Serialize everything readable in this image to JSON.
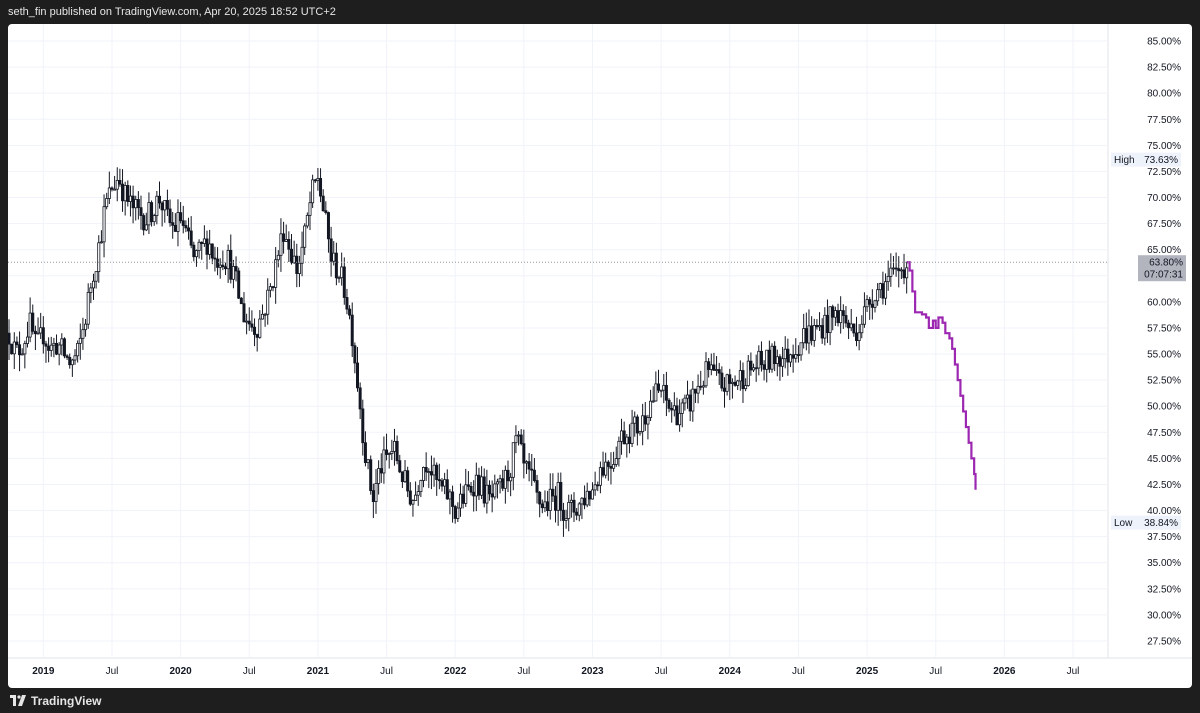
{
  "header": {
    "text": "seth_fin published on TradingView.com, Apr 20, 2025 18:52 UTC+2"
  },
  "footer": {
    "brand": "TradingView"
  },
  "colors": {
    "candles": "#131722",
    "projection": "#9c27b0",
    "grid": "#f0f3fa",
    "high_low_bg": "#eef2fa",
    "last_price_bg": "#b2b5be"
  },
  "chart_data": {
    "type": "line",
    "title": "",
    "y_axis": {
      "range": [
        26,
        87
      ],
      "unit": "%",
      "ticks": [
        "85.00%",
        "82.50%",
        "80.00%",
        "77.50%",
        "75.00%",
        "72.50%",
        "70.00%",
        "67.50%",
        "65.00%",
        "62.50%",
        "60.00%",
        "57.50%",
        "55.00%",
        "52.50%",
        "50.00%",
        "47.50%",
        "45.00%",
        "42.50%",
        "40.00%",
        "37.50%",
        "35.00%",
        "32.50%",
        "30.00%",
        "27.50%"
      ],
      "tick_values": [
        85,
        82.5,
        80,
        77.5,
        75,
        72.5,
        70,
        67.5,
        65,
        62.5,
        60,
        57.5,
        55,
        52.5,
        50,
        47.5,
        45,
        42.5,
        40,
        37.5,
        35,
        32.5,
        30,
        27.5
      ]
    },
    "x_axis": {
      "range": [
        2018.75,
        2026.5
      ],
      "ticks": [
        {
          "label": "2019",
          "t": 2019.0,
          "year": true
        },
        {
          "label": "Jul",
          "t": 2019.5,
          "year": false
        },
        {
          "label": "2020",
          "t": 2020.0,
          "year": true
        },
        {
          "label": "Jul",
          "t": 2020.5,
          "year": false
        },
        {
          "label": "2021",
          "t": 2021.0,
          "year": true
        },
        {
          "label": "Jul",
          "t": 2021.5,
          "year": false
        },
        {
          "label": "2022",
          "t": 2022.0,
          "year": true
        },
        {
          "label": "Jul",
          "t": 2022.5,
          "year": false
        },
        {
          "label": "2023",
          "t": 2023.0,
          "year": true
        },
        {
          "label": "Jul",
          "t": 2023.5,
          "year": false
        },
        {
          "label": "2024",
          "t": 2024.0,
          "year": true
        },
        {
          "label": "Jul",
          "t": 2024.5,
          "year": false
        },
        {
          "label": "2025",
          "t": 2025.0,
          "year": true
        },
        {
          "label": "Jul",
          "t": 2025.5,
          "year": false
        },
        {
          "label": "2026",
          "t": 2026.0,
          "year": true
        },
        {
          "label": "Jul",
          "t": 2026.5,
          "year": false
        }
      ]
    },
    "high": {
      "label": "High",
      "value_text": "73.63%",
      "value": 73.63
    },
    "low": {
      "label": "Low",
      "value_text": "38.84%",
      "value": 38.84
    },
    "last": {
      "value_text": "63.80%",
      "value": 63.8,
      "countdown": "07:07:31"
    },
    "series": [
      {
        "style": "candles",
        "points": [
          [
            2018.75,
            57
          ],
          [
            2018.8,
            55
          ],
          [
            2018.85,
            56
          ],
          [
            2018.9,
            58
          ],
          [
            2018.95,
            55.5
          ],
          [
            2019.0,
            57
          ],
          [
            2019.05,
            55.5
          ],
          [
            2019.1,
            56
          ],
          [
            2019.15,
            55
          ],
          [
            2019.2,
            54
          ],
          [
            2019.25,
            55
          ],
          [
            2019.3,
            58
          ],
          [
            2019.35,
            62
          ],
          [
            2019.4,
            65
          ],
          [
            2019.45,
            69
          ],
          [
            2019.5,
            71
          ],
          [
            2019.55,
            72
          ],
          [
            2019.6,
            70
          ],
          [
            2019.65,
            69
          ],
          [
            2019.7,
            68.5
          ],
          [
            2019.75,
            68
          ],
          [
            2019.8,
            69
          ],
          [
            2019.85,
            70
          ],
          [
            2019.9,
            68
          ],
          [
            2019.95,
            67
          ],
          [
            2020.0,
            68
          ],
          [
            2020.05,
            66
          ],
          [
            2020.1,
            64
          ],
          [
            2020.15,
            65
          ],
          [
            2020.2,
            66
          ],
          [
            2020.25,
            64
          ],
          [
            2020.3,
            64.5
          ],
          [
            2020.35,
            64
          ],
          [
            2020.4,
            62
          ],
          [
            2020.45,
            59
          ],
          [
            2020.5,
            58
          ],
          [
            2020.55,
            57.5
          ],
          [
            2020.6,
            59
          ],
          [
            2020.65,
            61
          ],
          [
            2020.7,
            64
          ],
          [
            2020.75,
            67
          ],
          [
            2020.8,
            65
          ],
          [
            2020.85,
            63
          ],
          [
            2020.9,
            66
          ],
          [
            2020.95,
            70
          ],
          [
            2021.0,
            72
          ],
          [
            2021.05,
            68
          ],
          [
            2021.1,
            64
          ],
          [
            2021.15,
            63
          ],
          [
            2021.2,
            61
          ],
          [
            2021.25,
            57
          ],
          [
            2021.3,
            51
          ],
          [
            2021.35,
            45
          ],
          [
            2021.4,
            41
          ],
          [
            2021.45,
            44
          ],
          [
            2021.5,
            45
          ],
          [
            2021.55,
            46
          ],
          [
            2021.6,
            44
          ],
          [
            2021.65,
            42
          ],
          [
            2021.7,
            41
          ],
          [
            2021.75,
            44
          ],
          [
            2021.8,
            45
          ],
          [
            2021.85,
            43
          ],
          [
            2021.9,
            42
          ],
          [
            2021.95,
            41.5
          ],
          [
            2022.0,
            40
          ],
          [
            2022.05,
            41
          ],
          [
            2022.1,
            42
          ],
          [
            2022.15,
            43
          ],
          [
            2022.2,
            42
          ],
          [
            2022.25,
            41
          ],
          [
            2022.3,
            41.5
          ],
          [
            2022.35,
            42.5
          ],
          [
            2022.4,
            44
          ],
          [
            2022.45,
            47
          ],
          [
            2022.5,
            44
          ],
          [
            2022.55,
            43
          ],
          [
            2022.6,
            41
          ],
          [
            2022.65,
            40.5
          ],
          [
            2022.7,
            41
          ],
          [
            2022.75,
            41.5
          ],
          [
            2022.8,
            40
          ],
          [
            2022.85,
            40
          ],
          [
            2022.9,
            40.5
          ],
          [
            2022.95,
            41.5
          ],
          [
            2023.0,
            42
          ],
          [
            2023.05,
            44
          ],
          [
            2023.1,
            44.5
          ],
          [
            2023.15,
            45
          ],
          [
            2023.2,
            47
          ],
          [
            2023.25,
            47.5
          ],
          [
            2023.3,
            48
          ],
          [
            2023.35,
            48
          ],
          [
            2023.4,
            50
          ],
          [
            2023.45,
            51
          ],
          [
            2023.5,
            51.5
          ],
          [
            2023.55,
            50
          ],
          [
            2023.6,
            49.5
          ],
          [
            2023.65,
            49.5
          ],
          [
            2023.7,
            50
          ],
          [
            2023.75,
            51.5
          ],
          [
            2023.8,
            52.5
          ],
          [
            2023.85,
            53.5
          ],
          [
            2023.9,
            52.5
          ],
          [
            2023.95,
            52
          ],
          [
            2024.0,
            52
          ],
          [
            2024.05,
            52.5
          ],
          [
            2024.1,
            53
          ],
          [
            2024.15,
            53.5
          ],
          [
            2024.2,
            54
          ],
          [
            2024.25,
            54
          ],
          [
            2024.3,
            54.5
          ],
          [
            2024.35,
            55
          ],
          [
            2024.4,
            54.5
          ],
          [
            2024.45,
            55.5
          ],
          [
            2024.5,
            56
          ],
          [
            2024.55,
            57
          ],
          [
            2024.6,
            57
          ],
          [
            2024.65,
            57.5
          ],
          [
            2024.7,
            58
          ],
          [
            2024.75,
            58.5
          ],
          [
            2024.8,
            59
          ],
          [
            2024.85,
            58
          ],
          [
            2024.9,
            57
          ],
          [
            2024.95,
            58
          ],
          [
            2025.0,
            59.5
          ],
          [
            2025.05,
            61
          ],
          [
            2025.1,
            61.5
          ],
          [
            2025.15,
            62
          ],
          [
            2025.2,
            62.5
          ],
          [
            2025.25,
            63.3
          ],
          [
            2025.29,
            63.8
          ]
        ]
      },
      {
        "style": "projection",
        "points": [
          [
            2025.29,
            63.8
          ],
          [
            2025.31,
            63
          ],
          [
            2025.33,
            61
          ],
          [
            2025.35,
            59
          ],
          [
            2025.38,
            59
          ],
          [
            2025.4,
            58.8
          ],
          [
            2025.43,
            58.5
          ],
          [
            2025.45,
            57.5
          ],
          [
            2025.48,
            58.2
          ],
          [
            2025.5,
            57.5
          ],
          [
            2025.52,
            58.5
          ],
          [
            2025.55,
            58
          ],
          [
            2025.57,
            57
          ],
          [
            2025.6,
            56.5
          ],
          [
            2025.62,
            55.5
          ],
          [
            2025.64,
            54
          ],
          [
            2025.66,
            52.5
          ],
          [
            2025.68,
            51
          ],
          [
            2025.7,
            49.5
          ],
          [
            2025.72,
            48
          ],
          [
            2025.74,
            46.5
          ],
          [
            2025.76,
            45
          ],
          [
            2025.78,
            43.5
          ],
          [
            2025.79,
            42
          ]
        ]
      }
    ]
  }
}
